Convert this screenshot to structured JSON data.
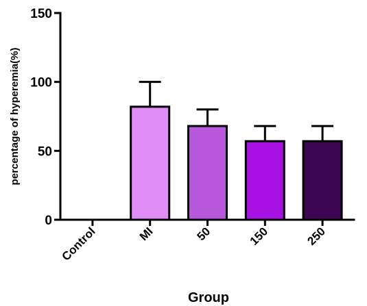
{
  "chart_data": {
    "type": "bar",
    "title": "",
    "xlabel": "Group",
    "ylabel": "percentage of hyperemia(%)",
    "ylim": [
      0,
      150
    ],
    "yticks": [
      "0",
      "50",
      "100",
      "150"
    ],
    "yticks_values": [
      0,
      50,
      100,
      150
    ],
    "categories": [
      "Control",
      "MI",
      "50",
      "150",
      "250"
    ],
    "values": [
      0,
      82,
      68,
      57,
      57
    ],
    "error": [
      0,
      18,
      12,
      11,
      11
    ],
    "colors": [
      "#ffffff",
      "#df8cf7",
      "#b657dc",
      "#a611e2",
      "#3c0653"
    ],
    "grid": false,
    "legend": "none"
  }
}
